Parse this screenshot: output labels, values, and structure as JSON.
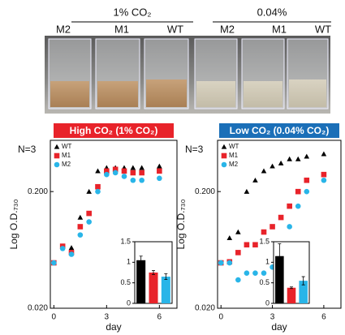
{
  "photo": {
    "groups": [
      {
        "label": "1% CO₂",
        "samples": [
          "M2",
          "M1",
          "WT"
        ]
      },
      {
        "label": "0.04%",
        "samples": [
          "M2",
          "M1",
          "WT"
        ]
      }
    ]
  },
  "chart_data": [
    {
      "type": "scatter",
      "title": "High CO₂ (1% CO₂)",
      "title_color": "#e8232a",
      "annotation": "N=3",
      "ylabel": "Log O.D.₇₃₀",
      "xlabel": "day",
      "log_y": true,
      "legend": "upper left",
      "x": [
        0,
        0.5,
        1,
        1.5,
        2,
        2.5,
        3,
        3.5,
        4,
        4.5,
        5,
        6
      ],
      "series": [
        {
          "name": "WT",
          "color": "#000000",
          "marker": "triangle",
          "values": [
            0.049,
            0.068,
            0.066,
            0.12,
            0.2,
            0.3,
            0.32,
            0.32,
            0.32,
            0.32,
            0.32,
            0.33
          ]
        },
        {
          "name": "M1",
          "color": "#e8232a",
          "marker": "square",
          "values": [
            0.049,
            0.068,
            0.06,
            0.1,
            0.13,
            0.22,
            0.3,
            0.31,
            0.3,
            0.29,
            0.29,
            0.3
          ]
        },
        {
          "name": "M2",
          "color": "#29b5e8",
          "marker": "circle",
          "values": [
            0.049,
            0.065,
            0.058,
            0.085,
            0.11,
            0.2,
            0.28,
            0.29,
            0.27,
            0.25,
            0.25,
            0.26
          ]
        }
      ],
      "xlim": [
        -0.2,
        7
      ],
      "ylim": [
        0.02,
        0.55
      ],
      "xticks": [
        0,
        3,
        6
      ],
      "yticks": [
        {
          "value": 0.02,
          "label": "0.020"
        },
        {
          "value": 0.2,
          "label": "0.200"
        }
      ]
    },
    {
      "type": "bar",
      "values": [
        1.05,
        0.75,
        0.65
      ],
      "errors": [
        0.1,
        0.05,
        0.07
      ],
      "colors": [
        "#000000",
        "#e8232a",
        "#29b5e8"
      ],
      "ylim": [
        0,
        1.5
      ],
      "yticks": [
        0,
        0.5,
        1,
        1.5
      ]
    },
    {
      "type": "scatter",
      "title": "Low CO₂ (0.04% CO₂)",
      "title_color": "#1b6fb8",
      "annotation": "N=3",
      "ylabel": "Log O.D.₇₃₀",
      "xlabel": "day",
      "log_y": true,
      "legend": "upper left",
      "x": [
        0,
        0.5,
        1,
        1.5,
        2,
        2.5,
        3,
        3.5,
        4,
        4.5,
        5,
        6
      ],
      "series": [
        {
          "name": "WT",
          "color": "#000000",
          "marker": "triangle",
          "values": [
            0.049,
            0.08,
            0.09,
            0.2,
            0.25,
            0.3,
            0.33,
            0.35,
            0.38,
            0.38,
            0.4,
            0.42
          ]
        },
        {
          "name": "M1",
          "color": "#e8232a",
          "marker": "square",
          "values": [
            0.049,
            0.05,
            0.06,
            0.07,
            0.07,
            0.09,
            0.1,
            0.12,
            0.15,
            0.2,
            0.25,
            0.28
          ]
        },
        {
          "name": "M2",
          "color": "#29b5e8",
          "marker": "circle",
          "values": [
            0.049,
            0.049,
            0.035,
            0.04,
            0.04,
            0.04,
            0.045,
            0.05,
            0.1,
            0.15,
            0.2,
            0.25
          ]
        }
      ],
      "xlim": [
        -0.2,
        7
      ],
      "ylim": [
        0.02,
        0.55
      ],
      "xticks": [
        0,
        3,
        6
      ],
      "yticks": [
        {
          "value": 0.02,
          "label": "0.020"
        },
        {
          "value": 0.2,
          "label": "0.200"
        }
      ]
    },
    {
      "type": "bar",
      "values": [
        1.15,
        0.38,
        0.55
      ],
      "errors": [
        0.3,
        0.02,
        0.1
      ],
      "colors": [
        "#000000",
        "#e8232a",
        "#29b5e8"
      ],
      "ylim": [
        0,
        1.5
      ],
      "yticks": [
        0,
        0.5,
        1,
        1.5
      ]
    }
  ]
}
